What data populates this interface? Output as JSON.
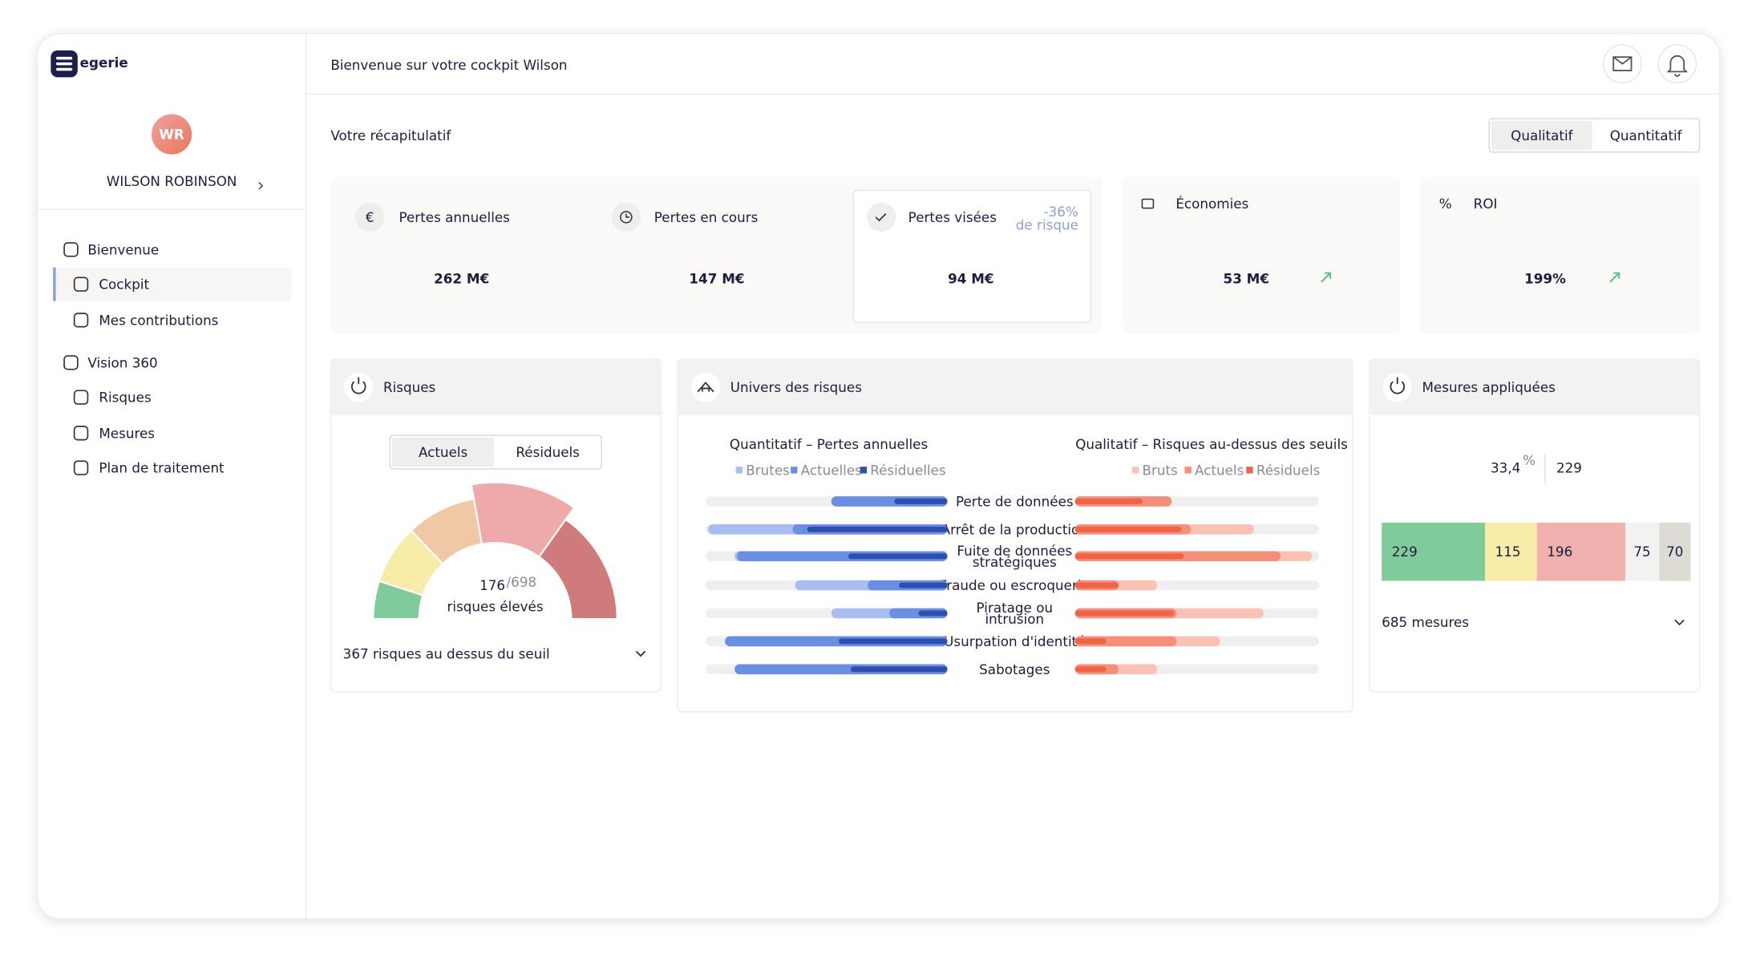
{
  "brand": "egerie",
  "header": {
    "welcome": "Bienvenue sur votre cockpit Wilson"
  },
  "user": {
    "initials": "WR",
    "name": "WILSON ROBINSON"
  },
  "nav": [
    {
      "label": "Bienvenue",
      "level": 0
    },
    {
      "label": "Cockpit",
      "level": 1,
      "active": true
    },
    {
      "label": "Mes contributions",
      "level": 1
    },
    {
      "label": "Vision 360",
      "level": 0
    },
    {
      "label": "Risques",
      "level": 1
    },
    {
      "label": "Mesures",
      "level": 1
    },
    {
      "label": "Plan de traitement",
      "level": 1
    }
  ],
  "summary": {
    "title": "Votre récapitulatif",
    "toggle": [
      {
        "label": "Qualitatif",
        "active": true
      },
      {
        "label": "Quantitatif"
      }
    ],
    "kpis": [
      {
        "symbol": "€",
        "label": "Pertes annuelles",
        "value": "262 M€"
      },
      {
        "label": "Pertes en cours",
        "value": "147 M€"
      },
      {
        "label": "Pertes visées",
        "value": "94 M€",
        "note": [
          "-36%",
          "de risque"
        ]
      },
      {
        "label": "Économies",
        "value": "53 M€",
        "trend": "up"
      },
      {
        "symbol": "%",
        "label": "ROI",
        "value": "199%",
        "trend": "up"
      }
    ]
  },
  "risques": {
    "title": "Risques",
    "tabs": [
      {
        "label": "Actuels",
        "active": true
      },
      {
        "label": "Résiduels"
      }
    ],
    "gauge": {
      "value": 176,
      "total": {
        "value": 698,
        "label": "/698"
      },
      "caption": "risques élevés",
      "segments": [
        {
          "value": 70,
          "color": "#7fcb9a"
        },
        {
          "value": 110,
          "color": "#f6eca8"
        },
        {
          "value": 130,
          "color": "#efc9a6"
        },
        {
          "value": 176,
          "color": "#eeaaaa",
          "highlight": true
        },
        {
          "value": 212,
          "color": "#cf7b7b"
        }
      ]
    },
    "footer": "367 risques au dessus du seuil"
  },
  "univers": {
    "title": "Univers des risques",
    "categories": [
      [
        "Perte de données"
      ],
      [
        "Arrêt de la production"
      ],
      [
        "Fuite de données",
        "stratégiques"
      ],
      [
        "Fraude ou escroquerie"
      ],
      [
        "Piratage ou",
        "intrusion"
      ],
      [
        "Usurpation d'identité"
      ],
      [
        "Sabotages"
      ]
    ],
    "left": {
      "title": "Quantitatif – Pertes annuelles",
      "series": [
        {
          "name": "Brutes",
          "color": "#a9bdf0",
          "values": [
            48,
            99,
            88,
            63,
            48,
            92,
            88
          ]
        },
        {
          "name": "Actuelles",
          "color": "#6b8fe0",
          "values": [
            48,
            64,
            87,
            33,
            24,
            92,
            88
          ]
        },
        {
          "name": "Résiduelles",
          "color": "#2f4fb0",
          "values": [
            22,
            58,
            41,
            20,
            12,
            45,
            40
          ]
        }
      ]
    },
    "right": {
      "title": "Qualitatif – Risques au-dessus des seuils",
      "series": [
        {
          "name": "Bruts",
          "color": "#f9c2b5",
          "values": [
            40,
            74,
            98,
            34,
            78,
            60,
            34
          ]
        },
        {
          "name": "Actuels",
          "color": "#f58f7a",
          "values": [
            40,
            48,
            85,
            18,
            42,
            42,
            18
          ]
        },
        {
          "name": "Résiduels",
          "color": "#ef6448",
          "values": [
            28,
            44,
            45,
            18,
            41,
            13,
            13
          ]
        }
      ]
    }
  },
  "mesures": {
    "title": "Mesures appliquées",
    "percent": "33,4",
    "percent_unit": "%",
    "count": "229",
    "segments": [
      {
        "value": 229,
        "color": "#7fcb9a"
      },
      {
        "value": 115,
        "color": "#f6eca8"
      },
      {
        "value": 196,
        "color": "#f0b0ad"
      },
      {
        "value": 75,
        "color": "#f3f2f0"
      },
      {
        "value": 70,
        "color": "#dedbd6"
      }
    ],
    "footer": "685 mesures"
  }
}
